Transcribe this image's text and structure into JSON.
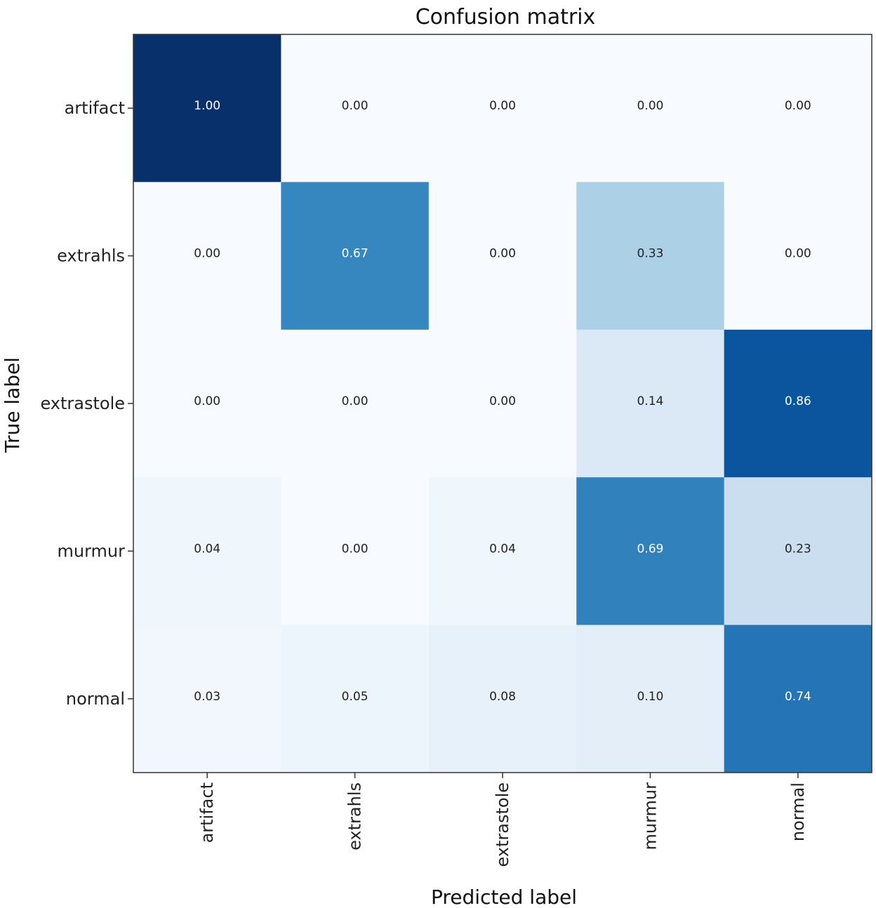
{
  "chart_data": {
    "type": "heatmap",
    "title": "Confusion matrix",
    "xlabel": "Predicted label",
    "ylabel": "True label",
    "x_categories": [
      "artifact",
      "extrahls",
      "extrastole",
      "murmur",
      "normal"
    ],
    "y_categories": [
      "artifact",
      "extrahls",
      "extrastole",
      "murmur",
      "normal"
    ],
    "values": [
      [
        1.0,
        0.0,
        0.0,
        0.0,
        0.0
      ],
      [
        0.0,
        0.67,
        0.0,
        0.33,
        0.0
      ],
      [
        0.0,
        0.0,
        0.0,
        0.14,
        0.86
      ],
      [
        0.04,
        0.0,
        0.04,
        0.69,
        0.23
      ],
      [
        0.03,
        0.05,
        0.08,
        0.1,
        0.74
      ]
    ],
    "value_format": "0.00",
    "colormap": "Blues",
    "vmin": 0,
    "vmax": 1,
    "grid": false
  }
}
